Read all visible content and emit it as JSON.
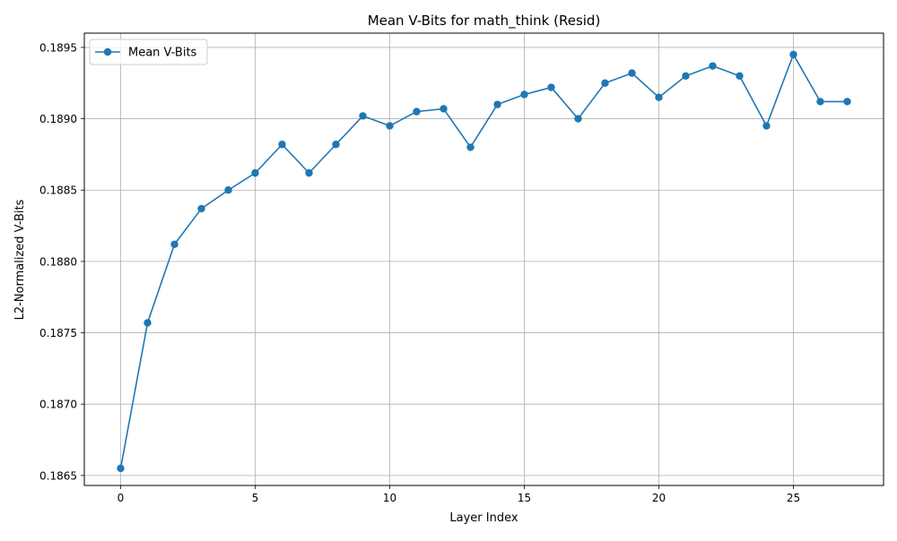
{
  "chart_data": {
    "type": "line",
    "title": "Mean V-Bits for math_think (Resid)",
    "xlabel": "Layer Index",
    "ylabel": "L2-Normalized V-Bits",
    "xlim": [
      -1.35,
      28.35
    ],
    "ylim": [
      0.18643,
      0.1896
    ],
    "xticks": [
      0,
      5,
      10,
      15,
      20,
      25
    ],
    "xtick_labels": [
      "0",
      "5",
      "10",
      "15",
      "20",
      "25"
    ],
    "yticks": [
      0.1865,
      0.187,
      0.1875,
      0.188,
      0.1885,
      0.189,
      0.1895
    ],
    "ytick_labels": [
      "0.1865",
      "0.1870",
      "0.1875",
      "0.1880",
      "0.1885",
      "0.1890",
      "0.1895"
    ],
    "grid": true,
    "legend_position": "upper-left",
    "series": [
      {
        "name": "Mean V-Bits",
        "color": "#1f77b4",
        "marker": "circle",
        "x": [
          0,
          1,
          2,
          3,
          4,
          5,
          6,
          7,
          8,
          9,
          10,
          11,
          12,
          13,
          14,
          15,
          16,
          17,
          18,
          19,
          20,
          21,
          22,
          23,
          24,
          25,
          26,
          27
        ],
        "values": [
          0.18655,
          0.18757,
          0.18812,
          0.18837,
          0.1885,
          0.18862,
          0.18882,
          0.18862,
          0.18882,
          0.18902,
          0.18895,
          0.18905,
          0.18907,
          0.1888,
          0.1891,
          0.18917,
          0.18922,
          0.189,
          0.18925,
          0.18932,
          0.18915,
          0.1893,
          0.18937,
          0.1893,
          0.18895,
          0.18945,
          0.18912,
          0.18912
        ]
      }
    ]
  }
}
